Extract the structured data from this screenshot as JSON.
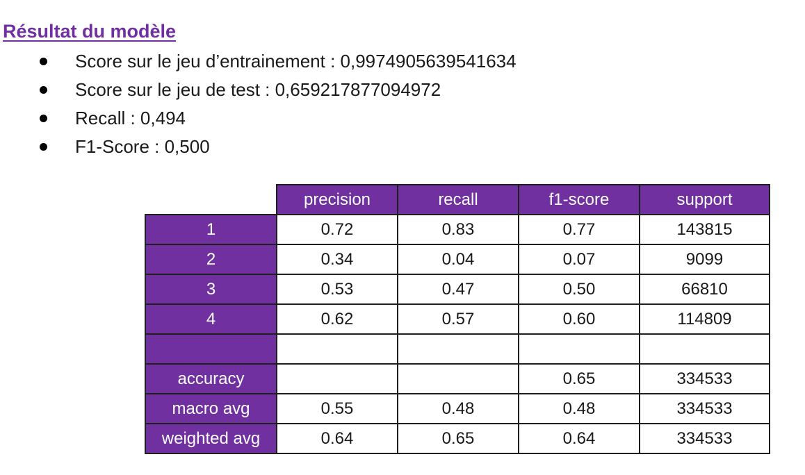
{
  "title": "Résultat du modèle",
  "bullets": [
    "Score sur le jeu d’entrainement : 0,9974905639541634",
    "Score sur le jeu de test :  0,659217877094972",
    "Recall : 0,494",
    "F1-Score : 0,500"
  ],
  "table": {
    "headers": [
      "precision",
      "recall",
      "f1-score",
      "support"
    ],
    "rows": [
      {
        "label": "1",
        "cells": [
          "0.72",
          "0.83",
          "0.77",
          "143815"
        ]
      },
      {
        "label": "2",
        "cells": [
          "0.34",
          "0.04",
          "0.07",
          "9099"
        ]
      },
      {
        "label": "3",
        "cells": [
          "0.53",
          "0.47",
          "0.50",
          "66810"
        ]
      },
      {
        "label": "4",
        "cells": [
          "0.62",
          "0.57",
          "0.60",
          "114809"
        ]
      },
      {
        "label": "",
        "cells": [
          "",
          "",
          "",
          ""
        ]
      },
      {
        "label": "accuracy",
        "cells": [
          "",
          "",
          "0.65",
          "334533"
        ]
      },
      {
        "label": "macro avg",
        "cells": [
          "0.55",
          "0.48",
          "0.48",
          "334533"
        ]
      },
      {
        "label": "weighted avg",
        "cells": [
          "0.64",
          "0.65",
          "0.64",
          "334533"
        ]
      }
    ]
  },
  "colors": {
    "accent": "#7030a0",
    "header_text": "#ffffff",
    "border": "#1f1f1f"
  }
}
